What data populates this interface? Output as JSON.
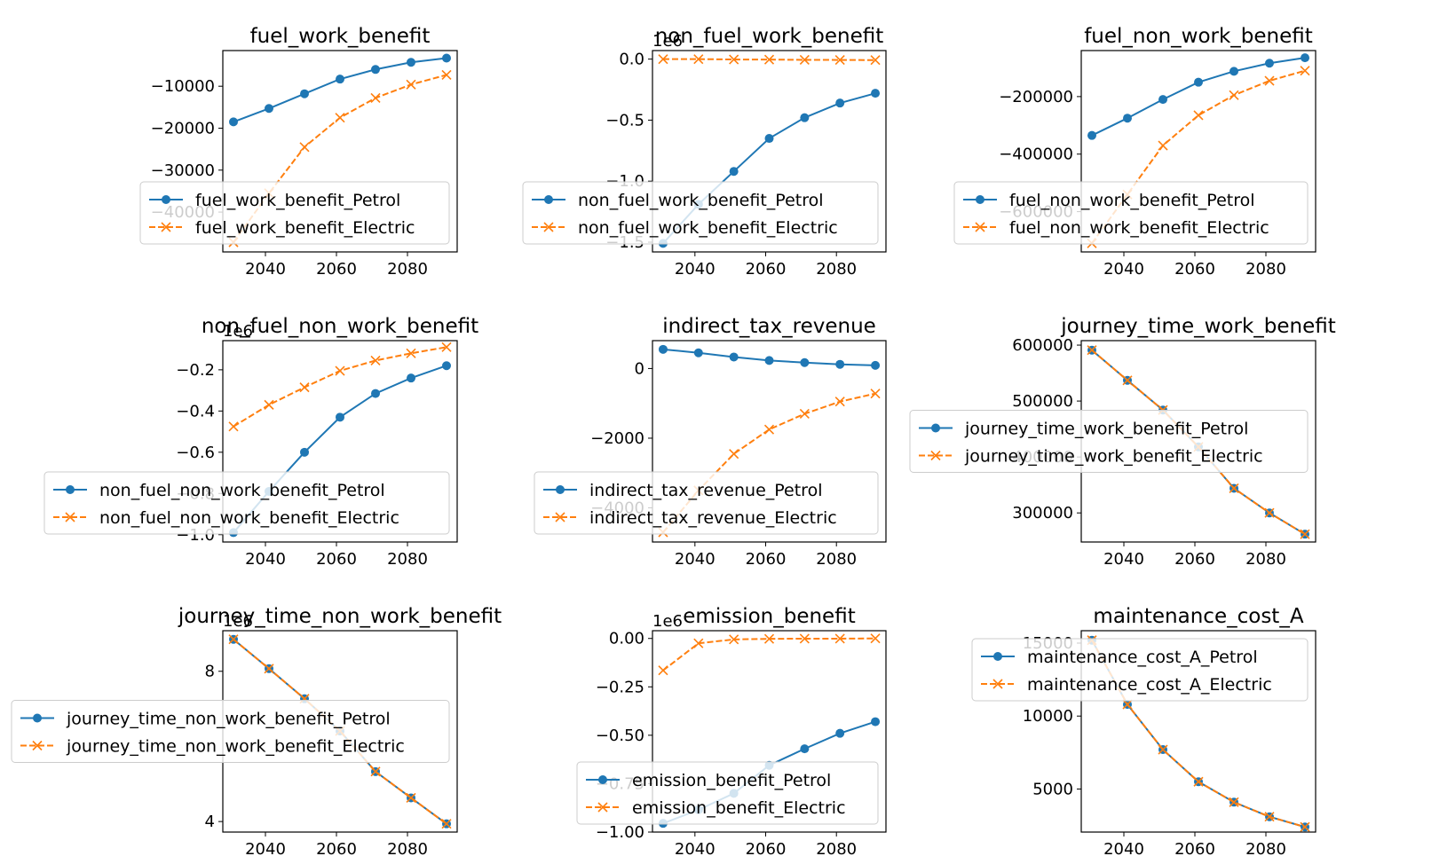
{
  "colors": {
    "petrol": "#1f77b4",
    "electric": "#ff7f0e",
    "axis": "#000000",
    "legend_edge": "#cccccc"
  },
  "chart_data": [
    {
      "type": "line",
      "title": "fuel_work_benefit",
      "x": [
        2031,
        2041,
        2051,
        2061,
        2071,
        2081,
        2091
      ],
      "xticks": [
        2040,
        2060,
        2080
      ],
      "xlim": [
        2028,
        2094
      ],
      "ylim": [
        -49500,
        -1500
      ],
      "yticks": [
        -10000,
        -20000,
        -30000,
        -40000
      ],
      "ytick_labels": [
        "−10000",
        "−20000",
        "−30000",
        "−40000"
      ],
      "offset_text": "",
      "legend_loc": "lower right",
      "series": [
        {
          "name": "fuel_work_benefit_Petrol",
          "values": [
            -18500,
            -15300,
            -11800,
            -8300,
            -6000,
            -4300,
            -3300
          ]
        },
        {
          "name": "fuel_work_benefit_Electric",
          "values": [
            -47200,
            -35500,
            -24500,
            -17500,
            -12800,
            -9600,
            -7300
          ]
        }
      ]
    },
    {
      "type": "line",
      "title": "non_fuel_work_benefit",
      "x": [
        2031,
        2041,
        2051,
        2061,
        2071,
        2081,
        2091
      ],
      "xticks": [
        2040,
        2060,
        2080
      ],
      "xlim": [
        2028,
        2094
      ],
      "ylim": [
        -1.58,
        0.07
      ],
      "yticks": [
        0.0,
        -0.5,
        -1.0,
        -1.5
      ],
      "ytick_labels": [
        "0.0",
        "−0.5",
        "−1.0",
        "−1.5"
      ],
      "offset_text": "1e6",
      "legend_loc": "lower right",
      "series": [
        {
          "name": "non_fuel_work_benefit_Petrol",
          "values": [
            -1.51,
            -1.19,
            -0.92,
            -0.65,
            -0.48,
            -0.36,
            -0.28
          ]
        },
        {
          "name": "non_fuel_work_benefit_Electric",
          "values": [
            0.0,
            0.0,
            -0.003,
            -0.004,
            -0.006,
            -0.007,
            -0.008
          ]
        }
      ]
    },
    {
      "type": "line",
      "title": "fuel_non_work_benefit",
      "x": [
        2031,
        2041,
        2051,
        2061,
        2071,
        2081,
        2091
      ],
      "xticks": [
        2040,
        2060,
        2080
      ],
      "xlim": [
        2028,
        2094
      ],
      "ylim": [
        -740000,
        -40000
      ],
      "yticks": [
        -200000,
        -400000,
        -600000
      ],
      "ytick_labels": [
        "−200000",
        "−400000",
        "−600000"
      ],
      "offset_text": "",
      "legend_loc": "lower right",
      "series": [
        {
          "name": "fuel_non_work_benefit_Petrol",
          "values": [
            -335000,
            -275000,
            -210000,
            -150000,
            -112000,
            -84000,
            -65000
          ]
        },
        {
          "name": "fuel_non_work_benefit_Electric",
          "values": [
            -710000,
            -540000,
            -370000,
            -265000,
            -195000,
            -145000,
            -110000
          ]
        }
      ]
    },
    {
      "type": "line",
      "title": "non_fuel_non_work_benefit",
      "x": [
        2031,
        2041,
        2051,
        2061,
        2071,
        2081,
        2091
      ],
      "xticks": [
        2040,
        2060,
        2080
      ],
      "xlim": [
        2028,
        2094
      ],
      "ylim": [
        -1.0355,
        -0.0585
      ],
      "yticks": [
        -0.2,
        -0.4,
        -0.6,
        -0.8,
        -1.0
      ],
      "ytick_labels": [
        "−0.2",
        "−0.4",
        "−0.6",
        "−0.8",
        "−1.0"
      ],
      "offset_text": "1e6",
      "legend_loc": "lower right",
      "series": [
        {
          "name": "non_fuel_non_work_benefit_Petrol",
          "values": [
            -0.99,
            -0.79,
            -0.6,
            -0.43,
            -0.315,
            -0.24,
            -0.18
          ]
        },
        {
          "name": "non_fuel_non_work_benefit_Electric",
          "values": [
            -0.475,
            -0.37,
            -0.285,
            -0.205,
            -0.155,
            -0.12,
            -0.09
          ]
        }
      ]
    },
    {
      "type": "line",
      "title": "indirect_tax_revenue",
      "x": [
        2031,
        2041,
        2051,
        2061,
        2071,
        2081,
        2091
      ],
      "xticks": [
        2040,
        2060,
        2080
      ],
      "xlim": [
        2028,
        2094
      ],
      "ylim": [
        -4980,
        800
      ],
      "yticks": [
        0,
        -2000,
        -4000
      ],
      "ytick_labels": [
        "0",
        "−2000",
        "−4000"
      ],
      "offset_text": "",
      "legend_loc": "lower right",
      "series": [
        {
          "name": "indirect_tax_revenue_Petrol",
          "values": [
            550,
            450,
            330,
            230,
            170,
            120,
            90
          ]
        },
        {
          "name": "indirect_tax_revenue_Electric",
          "values": [
            -4700,
            -3500,
            -2450,
            -1750,
            -1300,
            -950,
            -720
          ]
        }
      ]
    },
    {
      "type": "line",
      "title": "journey_time_work_benefit",
      "x": [
        2031,
        2041,
        2051,
        2061,
        2071,
        2081,
        2091
      ],
      "xticks": [
        2040,
        2060,
        2080
      ],
      "xlim": [
        2028,
        2094
      ],
      "ylim": [
        248000,
        608000
      ],
      "yticks": [
        600000,
        500000,
        400000,
        300000
      ],
      "ytick_labels": [
        "600000",
        "500000",
        "400000",
        "300000"
      ],
      "offset_text": "",
      "legend_loc": "center right",
      "series": [
        {
          "name": "journey_time_work_benefit_Petrol",
          "values": [
            591000,
            537000,
            484000,
            418000,
            344000,
            300000,
            262000
          ]
        },
        {
          "name": "journey_time_work_benefit_Electric",
          "values": [
            591000,
            537000,
            484000,
            418000,
            344000,
            300000,
            262000
          ]
        }
      ]
    },
    {
      "type": "line",
      "title": "journey_time_non_work_benefit",
      "x": [
        2031,
        2041,
        2051,
        2061,
        2071,
        2081,
        2091
      ],
      "xticks": [
        2040,
        2060,
        2080
      ],
      "xlim": [
        2028,
        2094
      ],
      "ylim": [
        3.72,
        9.08
      ],
      "yticks": [
        8,
        4
      ],
      "ytick_labels": [
        "8",
        "4"
      ],
      "offset_text": "1e6",
      "legend_loc": "center right",
      "series": [
        {
          "name": "journey_time_non_work_benefit_Petrol",
          "values": [
            8.85,
            8.07,
            7.27,
            6.41,
            5.33,
            4.63,
            3.94
          ]
        },
        {
          "name": "journey_time_non_work_benefit_Electric",
          "values": [
            8.85,
            8.07,
            7.27,
            6.41,
            5.33,
            4.63,
            3.94
          ]
        }
      ]
    },
    {
      "type": "line",
      "title": "emission_benefit",
      "x": [
        2031,
        2041,
        2051,
        2061,
        2071,
        2081,
        2091
      ],
      "xticks": [
        2040,
        2060,
        2080
      ],
      "xlim": [
        2028,
        2094
      ],
      "ylim": [
        -1.0,
        0.04
      ],
      "yticks": [
        0.0,
        -0.25,
        -0.5,
        -0.75,
        -1.0
      ],
      "ytick_labels": [
        "0.00",
        "−0.25",
        "−0.50",
        "−0.75",
        "−1.00"
      ],
      "offset_text": "1e6",
      "legend_loc": "lower right",
      "series": [
        {
          "name": "emission_benefit_Petrol",
          "values": [
            -0.955,
            -0.885,
            -0.8,
            -0.655,
            -0.57,
            -0.49,
            -0.43
          ]
        },
        {
          "name": "emission_benefit_Electric",
          "values": [
            -0.165,
            -0.025,
            -0.005,
            -0.002,
            -0.001,
            -0.001,
            0.0
          ]
        }
      ]
    },
    {
      "type": "line",
      "title": "maintenance_cost_A",
      "x": [
        2031,
        2041,
        2051,
        2061,
        2071,
        2081,
        2091
      ],
      "xticks": [
        2040,
        2060,
        2080
      ],
      "xlim": [
        2028,
        2094
      ],
      "ylim": [
        2050,
        15850
      ],
      "yticks": [
        15000,
        10000,
        5000
      ],
      "ytick_labels": [
        "15000",
        "10000",
        "5000"
      ],
      "offset_text": "",
      "legend_loc": "upper right",
      "series": [
        {
          "name": "maintenance_cost_A_Petrol",
          "values": [
            15200,
            10800,
            7700,
            5500,
            4100,
            3100,
            2400
          ]
        },
        {
          "name": "maintenance_cost_A_Electric",
          "values": [
            15200,
            10800,
            7700,
            5500,
            4100,
            3100,
            2400
          ]
        }
      ]
    }
  ]
}
